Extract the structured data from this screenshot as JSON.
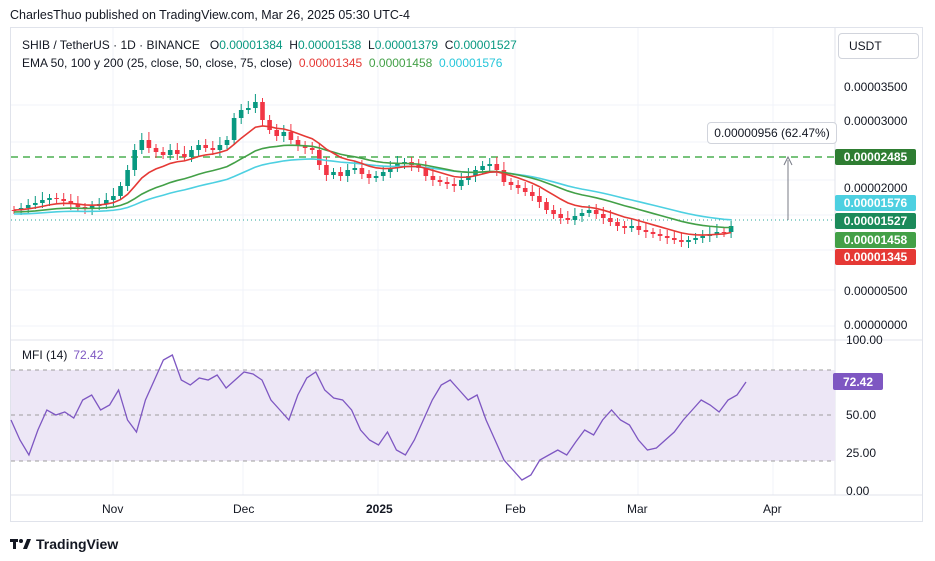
{
  "header": {
    "publisher_line": "CharlesThuo published on TradingView.com, Mar 26, 2025 05:30 UTC-4"
  },
  "symbol_legend": {
    "symbol": "SHIB / TetherUS · 1D · BINANCE",
    "o_label": "O",
    "o_value": "0.00001384",
    "h_label": "H",
    "h_value": "0.00001538",
    "l_label": "L",
    "l_value": "0.00001379",
    "c_label": "C",
    "c_value": "0.00001527"
  },
  "ema_legend": {
    "label": "EMA 50, 100 y 200 (25, close, 50, close, 75, close)",
    "v1": "0.00001345",
    "v2": "0.00001458",
    "v3": "0.00001576"
  },
  "currency_button": "USDT",
  "price_axis": [
    "0.00003500",
    "0.00003000",
    "0.00002000",
    "0.00000500",
    "0.00000000"
  ],
  "price_tags": [
    {
      "label": "0.00002485",
      "color": "#2e7d32"
    },
    {
      "label": "0.00001576",
      "color": "#4dd0e1"
    },
    {
      "label": "0.00001527",
      "color": "#1b8a5a"
    },
    {
      "label": "0.00001458",
      "color": "#43a047"
    },
    {
      "label": "0.00001345",
      "color": "#e53935"
    }
  ],
  "measure_callout": "0.00000956 (62.47%)",
  "mfi": {
    "label": "MFI (14)",
    "value": "72.42",
    "axis": [
      "100.00",
      "50.00",
      "25.00",
      "0.00"
    ],
    "color": "#7e57c2"
  },
  "time_axis": [
    "Nov",
    "Dec",
    "2025",
    "Feb",
    "Mar",
    "Apr"
  ],
  "footer": {
    "brand": "TradingView"
  },
  "colors": {
    "up": "#089981",
    "down": "#f23645",
    "ema_red": "#e53935",
    "ema_green": "#43a047",
    "ema_cyan": "#4dd0e1",
    "target_line": "#4caf50",
    "mfi_line": "#7e57c2",
    "mfi_band": "#ede7f6"
  }
}
